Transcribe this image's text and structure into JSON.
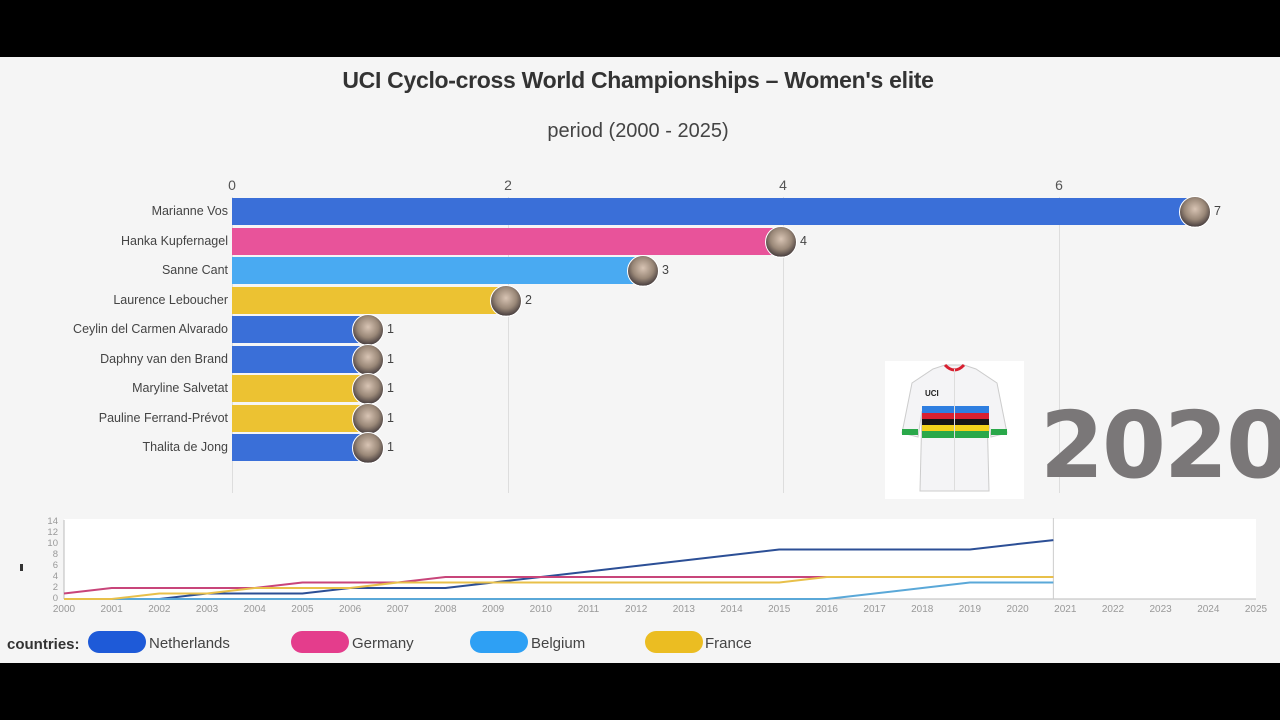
{
  "header": {
    "title": "UCI Cyclo-cross World Championships – Women's elite",
    "subtitle": "period (2000 - 2025)"
  },
  "current_year": "2020",
  "colors": {
    "Netherlands": "#3a6fd8",
    "Germany": "#e8539a",
    "Belgium": "#49aaf2",
    "France": "#ecc232",
    "line_Netherlands": "#2c4f96",
    "line_Germany": "#c8457a",
    "line_Belgium": "#5aa8d8",
    "line_France": "#e8c04a"
  },
  "bar_axis": {
    "ticks": [
      "0",
      "2",
      "4",
      "6"
    ]
  },
  "bars": [
    {
      "name": "Marianne Vos",
      "value": "7",
      "country": "Netherlands"
    },
    {
      "name": "Hanka Kupfernagel",
      "value": "4",
      "country": "Germany"
    },
    {
      "name": "Sanne Cant",
      "value": "3",
      "country": "Belgium"
    },
    {
      "name": "Laurence Leboucher",
      "value": "2",
      "country": "France"
    },
    {
      "name": "Ceylin del Carmen Alvarado",
      "value": "1",
      "country": "Netherlands"
    },
    {
      "name": "Daphny van den Brand",
      "value": "1",
      "country": "Netherlands"
    },
    {
      "name": "Maryline Salvetat",
      "value": "1",
      "country": "France"
    },
    {
      "name": "Pauline Ferrand-Prévot",
      "value": "1",
      "country": "France"
    },
    {
      "name": "Thalita de Jong",
      "value": "1",
      "country": "Netherlands"
    }
  ],
  "line_axis": {
    "y_ticks": [
      "0",
      "2",
      "4",
      "6",
      "8",
      "10",
      "12",
      "14"
    ],
    "x_ticks": [
      "2000",
      "2001",
      "2002",
      "2003",
      "2004",
      "2005",
      "2006",
      "2007",
      "2008",
      "2009",
      "2010",
      "2011",
      "2012",
      "2013",
      "2014",
      "2015",
      "2016",
      "2017",
      "2018",
      "2019",
      "2020",
      "2021",
      "2022",
      "2023",
      "2024",
      "2025"
    ]
  },
  "legend": {
    "title": "countries:",
    "items": [
      {
        "label": "Netherlands"
      },
      {
        "label": "Germany"
      },
      {
        "label": "Belgium"
      },
      {
        "label": "France"
      }
    ]
  },
  "chart_data": [
    {
      "type": "bar",
      "title": "UCI Cyclo-cross World Championships – Women's elite",
      "subtitle": "period (2000 - 2025)",
      "orientation": "horizontal",
      "categories": [
        "Marianne Vos",
        "Hanka Kupfernagel",
        "Sanne Cant",
        "Laurence Leboucher",
        "Ceylin del Carmen Alvarado",
        "Daphny van den Brand",
        "Maryline Salvetat",
        "Pauline Ferrand-Prévot",
        "Thalita de Jong"
      ],
      "values": [
        7,
        4,
        3,
        2,
        1,
        1,
        1,
        1,
        1
      ],
      "countries": [
        "Netherlands",
        "Germany",
        "Belgium",
        "France",
        "Netherlands",
        "Netherlands",
        "France",
        "France",
        "Netherlands"
      ],
      "xlim": [
        0,
        7
      ],
      "x_ticks": [
        0,
        2,
        4,
        6
      ],
      "grid": true,
      "annotation": "2020"
    },
    {
      "type": "line",
      "title": "",
      "xlabel": "",
      "ylabel": "",
      "x": [
        2000,
        2001,
        2002,
        2003,
        2004,
        2005,
        2006,
        2007,
        2008,
        2009,
        2010,
        2011,
        2012,
        2013,
        2014,
        2015,
        2016,
        2017,
        2018,
        2019,
        2020,
        2020.75
      ],
      "series": [
        {
          "name": "Netherlands",
          "values": [
            0,
            0,
            0,
            1,
            1,
            1,
            2,
            2,
            2,
            3,
            4,
            5,
            6,
            7,
            8,
            9,
            9,
            9,
            9,
            9,
            10,
            10.7
          ]
        },
        {
          "name": "Germany",
          "values": [
            1,
            2,
            2,
            2,
            2,
            3,
            3,
            3,
            4,
            4,
            4,
            4,
            4,
            4,
            4,
            4,
            4,
            4,
            4,
            4,
            4,
            4
          ]
        },
        {
          "name": "Belgium",
          "values": [
            0,
            0,
            0,
            0,
            0,
            0,
            0,
            0,
            0,
            0,
            0,
            0,
            0,
            0,
            0,
            0,
            0,
            1,
            2,
            3,
            3,
            3
          ]
        },
        {
          "name": "France",
          "values": [
            0,
            0,
            1,
            1,
            2,
            2,
            2,
            3,
            3,
            3,
            3,
            3,
            3,
            3,
            3,
            3,
            4,
            4,
            4,
            4,
            4,
            4
          ]
        }
      ],
      "xlim": [
        2000,
        2025
      ],
      "ylim": [
        0,
        14
      ],
      "legend_position": "bottom"
    }
  ]
}
